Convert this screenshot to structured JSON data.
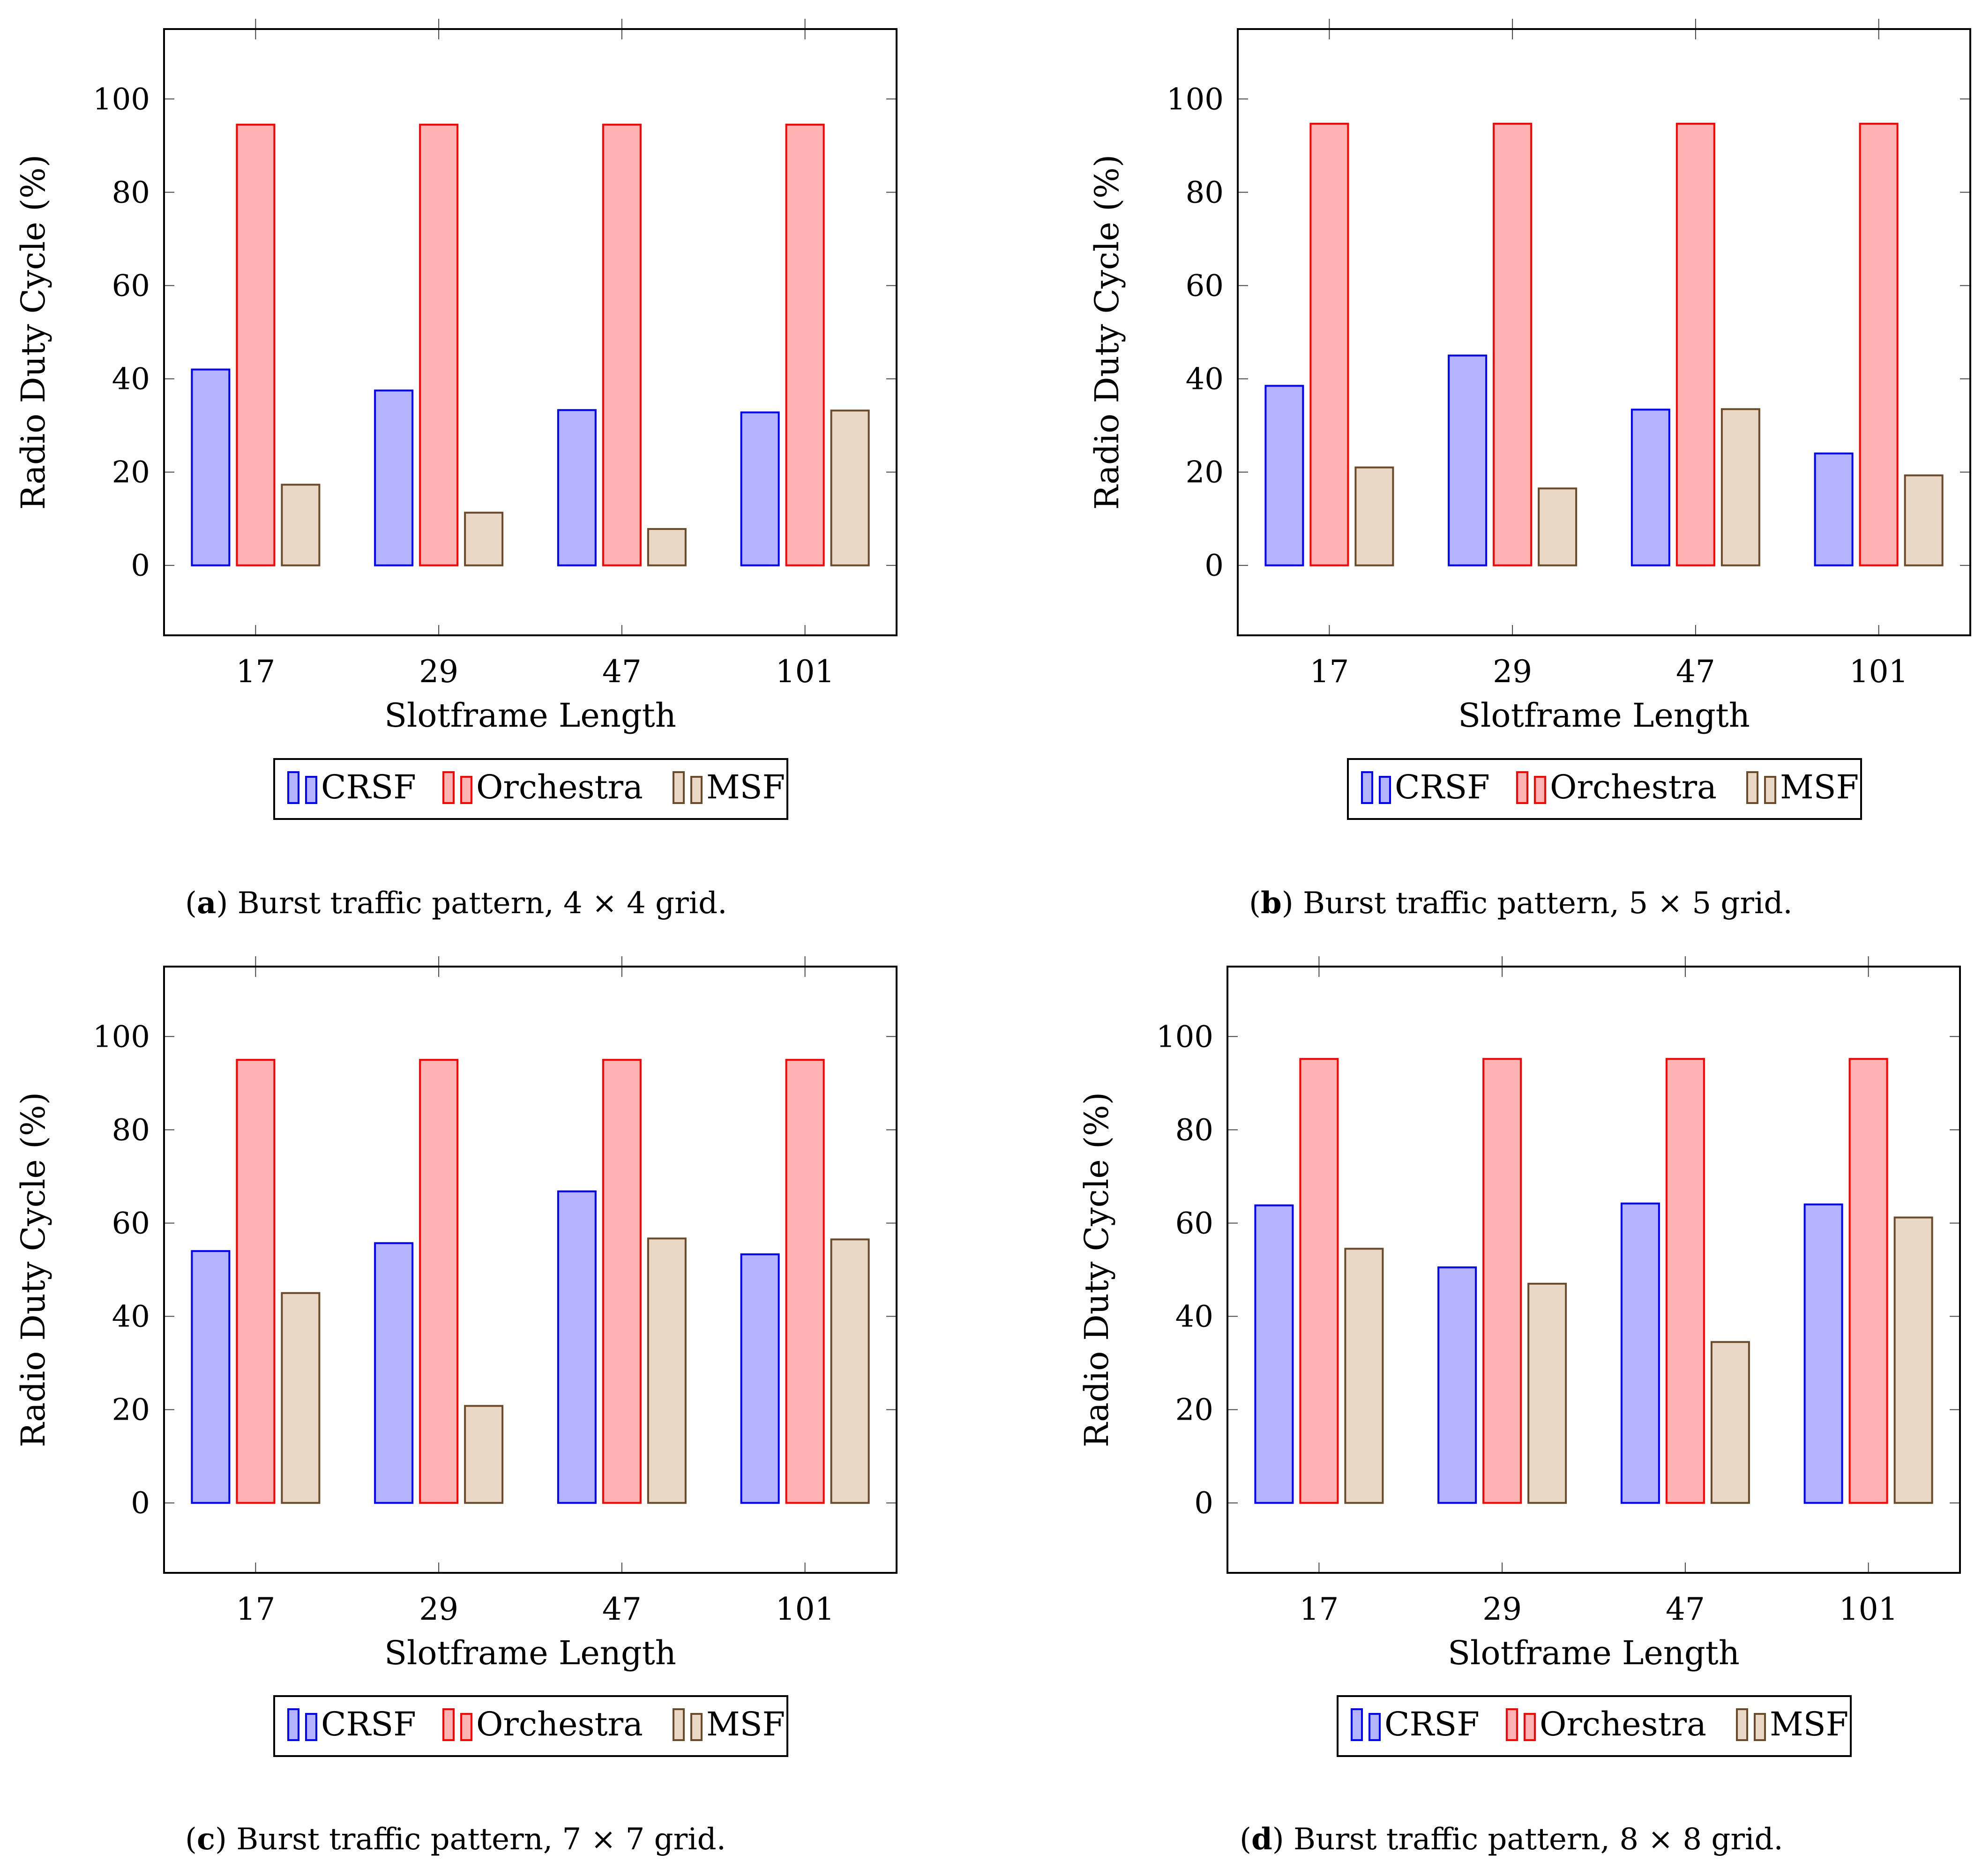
{
  "figure": {
    "legend": [
      "CRSF",
      "Orchestra",
      "MSF"
    ],
    "colors": {
      "CRSF": {
        "fill": "#b3b3ff",
        "stroke": "#0000ff"
      },
      "Orchestra": {
        "fill": "#ffb3b3",
        "stroke": "#ff0000"
      },
      "MSF": {
        "fill": "#e9d8c6",
        "stroke": "#6b4a2a"
      }
    }
  },
  "chart_data": [
    {
      "type": "bar",
      "caption_letter": "a",
      "caption_text": "Burst traffic pattern, 4 × 4 grid.",
      "categories": [
        "17",
        "29",
        "47",
        "101"
      ],
      "series": [
        {
          "name": "CRSF",
          "values": [
            42,
            37.5,
            33.3,
            32.8
          ]
        },
        {
          "name": "Orchestra",
          "values": [
            94.5,
            94.5,
            94.5,
            94.5
          ]
        },
        {
          "name": "MSF",
          "values": [
            17.3,
            11.3,
            7.8,
            33.2
          ]
        }
      ],
      "xlabel": "Slotframe Length",
      "ylabel": "Radio Duty Cycle (%)",
      "ylim": [
        -15,
        115
      ],
      "yticks": [
        0,
        20,
        40,
        60,
        80,
        100
      ]
    },
    {
      "type": "bar",
      "caption_letter": "b",
      "caption_text": "Burst traffic pattern, 5 × 5 grid.",
      "categories": [
        "17",
        "29",
        "47",
        "101"
      ],
      "series": [
        {
          "name": "CRSF",
          "values": [
            38.5,
            45,
            33.4,
            24
          ]
        },
        {
          "name": "Orchestra",
          "values": [
            94.7,
            94.7,
            94.7,
            94.7
          ]
        },
        {
          "name": "MSF",
          "values": [
            21,
            16.5,
            33.5,
            19.3
          ]
        }
      ],
      "xlabel": "Slotframe Length",
      "ylabel": "Radio Duty Cycle (%)",
      "ylim": [
        -15,
        115
      ],
      "yticks": [
        0,
        20,
        40,
        60,
        80,
        100
      ]
    },
    {
      "type": "bar",
      "caption_letter": "c",
      "caption_text": "Burst traffic pattern, 7 × 7 grid.",
      "categories": [
        "17",
        "29",
        "47",
        "101"
      ],
      "series": [
        {
          "name": "CRSF",
          "values": [
            54,
            55.7,
            66.8,
            53.3
          ]
        },
        {
          "name": "Orchestra",
          "values": [
            95,
            95,
            95,
            95
          ]
        },
        {
          "name": "MSF",
          "values": [
            45,
            20.8,
            56.7,
            56.5
          ]
        }
      ],
      "xlabel": "Slotframe Length",
      "ylabel": "Radio Duty Cycle (%)",
      "ylim": [
        -15,
        115
      ],
      "yticks": [
        0,
        20,
        40,
        60,
        80,
        100
      ]
    },
    {
      "type": "bar",
      "caption_letter": "d",
      "caption_text": "Burst traffic pattern, 8 × 8 grid.",
      "categories": [
        "17",
        "29",
        "47",
        "101"
      ],
      "series": [
        {
          "name": "CRSF",
          "values": [
            63.8,
            50.5,
            64.2,
            64
          ]
        },
        {
          "name": "Orchestra",
          "values": [
            95.2,
            95.2,
            95.2,
            95.2
          ]
        },
        {
          "name": "MSF",
          "values": [
            54.5,
            47,
            34.5,
            61.2
          ]
        }
      ],
      "xlabel": "Slotframe Length",
      "ylabel": "Radio Duty Cycle (%)",
      "ylim": [
        -15,
        115
      ],
      "yticks": [
        0,
        20,
        40,
        60,
        80,
        100
      ]
    }
  ]
}
